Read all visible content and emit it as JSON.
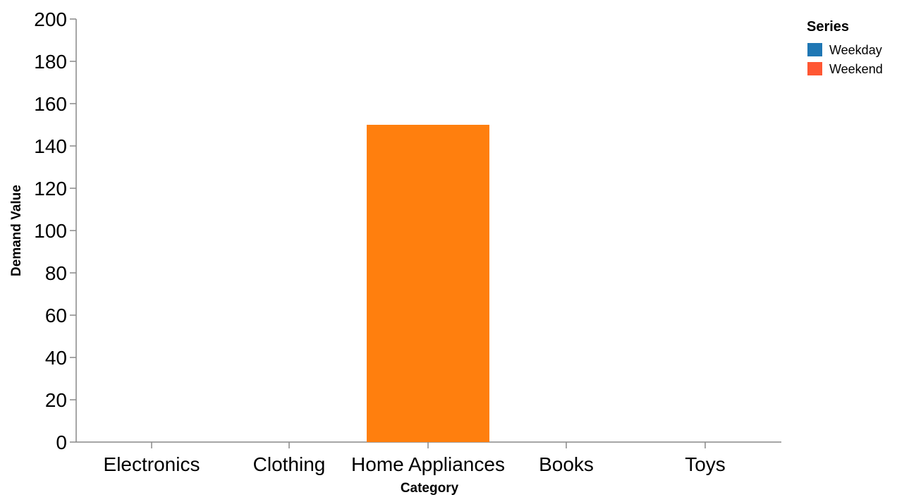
{
  "chart_data": {
    "type": "bar",
    "title": "",
    "xlabel": "Category",
    "ylabel": "Demand Value",
    "categories": [
      "Electronics",
      "Clothing",
      "Home Appliances",
      "Books",
      "Toys"
    ],
    "ylim": [
      0,
      200
    ],
    "yticks": [
      0,
      20,
      40,
      60,
      80,
      100,
      120,
      140,
      160,
      180,
      200
    ],
    "grid": false,
    "legend": {
      "title": "Series",
      "placement": "top-right",
      "entries": [
        {
          "name": "Weekday",
          "color": "#1f77b4"
        },
        {
          "name": "Weekend",
          "color": "#ff5733"
        }
      ]
    },
    "bars": [
      {
        "category": "Home Appliances",
        "value": 150,
        "color": "#ff7f0e"
      }
    ]
  }
}
